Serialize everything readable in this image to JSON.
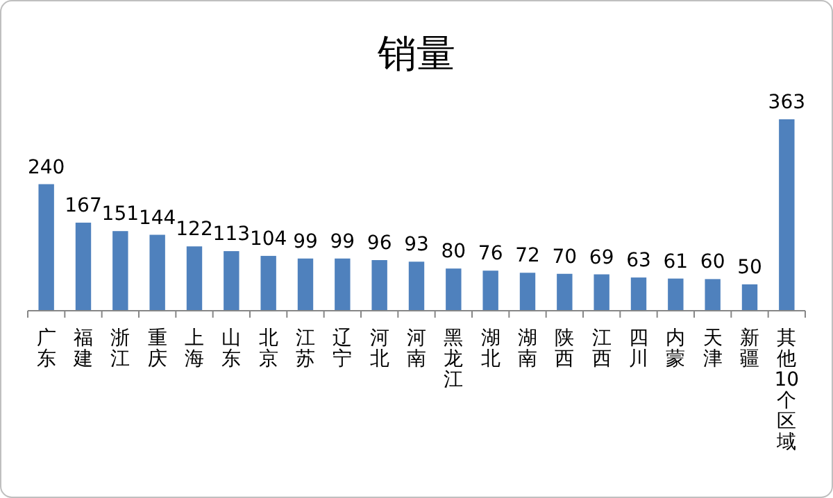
{
  "chart_data": {
    "type": "bar",
    "title": "销量",
    "data_labels": true,
    "categories": [
      "广东",
      "福建",
      "浙江",
      "重庆",
      "上海",
      "山东",
      "北京",
      "江苏",
      "辽宁",
      "河北",
      "河南",
      "黑龙江",
      "湖北",
      "湖南",
      "陕西",
      "江西",
      "四川",
      "内蒙",
      "天津",
      "新疆",
      "其他10个区域"
    ],
    "series": [
      {
        "color": "#4f81bd",
        "values": [
          240,
          167,
          151,
          144,
          122,
          113,
          104,
          99,
          99,
          96,
          93,
          80,
          76,
          72,
          70,
          69,
          63,
          61,
          60,
          50,
          363
        ]
      }
    ]
  }
}
